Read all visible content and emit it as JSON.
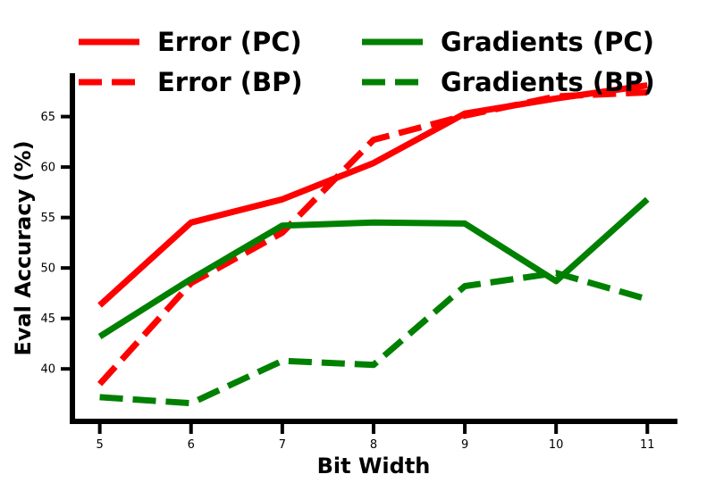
{
  "chart_data": {
    "type": "line",
    "title": "",
    "xlabel": "Bit Width",
    "ylabel": "Eval Accuracy (%)",
    "x": [
      5,
      6,
      7,
      8,
      9,
      10,
      11
    ],
    "x_ticks": [
      "5",
      "6",
      "7",
      "8",
      "9",
      "10",
      "11"
    ],
    "y_ticks": [
      "40",
      "45",
      "50",
      "55",
      "60",
      "65"
    ],
    "xlim": [
      4.7,
      11.33
    ],
    "ylim": [
      34.8,
      69.3
    ],
    "grid": false,
    "legend_placement": "top",
    "series": [
      {
        "name": "Error (PC)",
        "color": "#ff0000",
        "dashed": false,
        "values": [
          46.3,
          54.5,
          56.8,
          60.4,
          65.3,
          66.8,
          68.1
        ]
      },
      {
        "name": "Error (BP)",
        "color": "#ff0000",
        "dashed": true,
        "values": [
          38.5,
          48.5,
          53.5,
          62.7,
          65.1,
          67.0,
          67.4
        ]
      },
      {
        "name": "Gradients (PC)",
        "color": "#008000",
        "dashed": false,
        "values": [
          43.2,
          48.9,
          54.2,
          54.5,
          54.4,
          48.7,
          56.8
        ]
      },
      {
        "name": "Gradients (BP)",
        "color": "#008000",
        "dashed": true,
        "values": [
          37.2,
          36.6,
          40.8,
          40.4,
          48.2,
          49.5,
          46.9
        ]
      }
    ]
  }
}
